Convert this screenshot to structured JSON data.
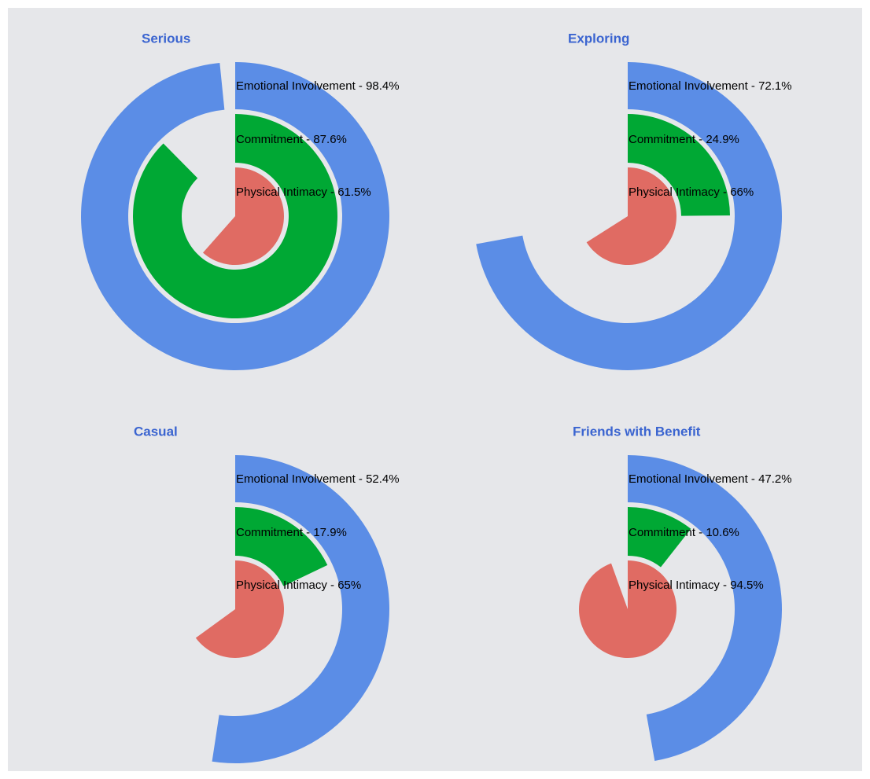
{
  "chart_data": [
    {
      "type": "radialBar",
      "title": "Serious",
      "categories": [
        "Emotional Involvement",
        "Commitment",
        "Physical Intimacy"
      ],
      "values": [
        98.4,
        87.6,
        61.5
      ],
      "value_labels": [
        "Emotional Involvement - 98.4%",
        "Commitment - 87.6%",
        "Physical Intimacy - 61.5%"
      ],
      "colors": [
        "#5b8de6",
        "#00a834",
        "#e06b63"
      ],
      "ylim": [
        0,
        100
      ]
    },
    {
      "type": "radialBar",
      "title": "Exploring",
      "categories": [
        "Emotional Involvement",
        "Commitment",
        "Physical Intimacy"
      ],
      "values": [
        72.1,
        24.9,
        66
      ],
      "value_labels": [
        "Emotional Involvement - 72.1%",
        "Commitment - 24.9%",
        "Physical Intimacy - 66%"
      ],
      "colors": [
        "#5b8de6",
        "#00a834",
        "#e06b63"
      ],
      "ylim": [
        0,
        100
      ]
    },
    {
      "type": "radialBar",
      "title": "Casual",
      "categories": [
        "Emotional Involvement",
        "Commitment",
        "Physical Intimacy"
      ],
      "values": [
        52.4,
        17.9,
        65
      ],
      "value_labels": [
        "Emotional Involvement - 52.4%",
        "Commitment - 17.9%",
        "Physical Intimacy - 65%"
      ],
      "colors": [
        "#5b8de6",
        "#00a834",
        "#e06b63"
      ],
      "ylim": [
        0,
        100
      ]
    },
    {
      "type": "radialBar",
      "title": "Friends with Benefit",
      "categories": [
        "Emotional Involvement",
        "Commitment",
        "Physical Intimacy"
      ],
      "values": [
        47.2,
        10.6,
        94.5
      ],
      "value_labels": [
        "Emotional Involvement - 47.2%",
        "Commitment - 10.6%",
        "Physical Intimacy - 94.5%"
      ],
      "colors": [
        "#5b8de6",
        "#00a834",
        "#e06b63"
      ],
      "ylim": [
        0,
        100
      ]
    }
  ]
}
